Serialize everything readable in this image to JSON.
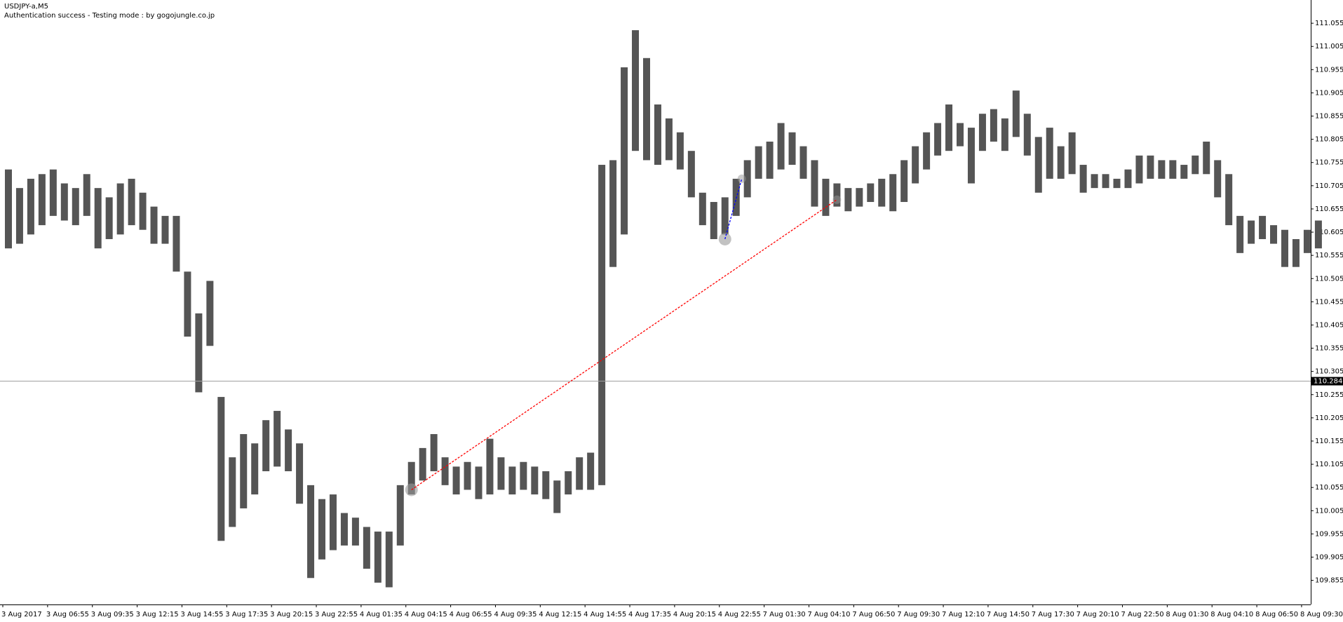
{
  "chart_data": {
    "type": "ohlc",
    "title": "USDJPY-a,M5",
    "subtitle": "Authentication success - Testing mode : by gogojungle.co.jp",
    "x_labels": [
      "3 Aug 2017",
      "3 Aug 06:55",
      "3 Aug 09:35",
      "3 Aug 12:15",
      "3 Aug 14:55",
      "3 Aug 17:35",
      "3 Aug 20:15",
      "3 Aug 22:55",
      "4 Aug 01:35",
      "4 Aug 04:15",
      "4 Aug 06:55",
      "4 Aug 09:35",
      "4 Aug 12:15",
      "4 Aug 14:55",
      "4 Aug 17:35",
      "4 Aug 20:15",
      "4 Aug 22:55",
      "7 Aug 01:30",
      "7 Aug 04:10",
      "7 Aug 06:50",
      "7 Aug 09:30",
      "7 Aug 12:10",
      "7 Aug 14:50",
      "7 Aug 17:30",
      "7 Aug 20:10",
      "7 Aug 22:50",
      "8 Aug 01:30",
      "8 Aug 04:10",
      "8 Aug 06:50",
      "8 Aug 09:30"
    ],
    "high": [
      110.74,
      110.7,
      110.72,
      110.73,
      110.74,
      110.71,
      110.7,
      110.73,
      110.7,
      110.68,
      110.71,
      110.72,
      110.69,
      110.66,
      110.64,
      110.64,
      110.52,
      110.43,
      110.5,
      110.25,
      110.12,
      110.17,
      110.15,
      110.2,
      110.22,
      110.18,
      110.15,
      110.06,
      110.03,
      110.04,
      110.0,
      109.99,
      109.97,
      109.96,
      109.96,
      110.06,
      110.11,
      110.14,
      110.17,
      110.12,
      110.1,
      110.11,
      110.1,
      110.16,
      110.12,
      110.1,
      110.11,
      110.1,
      110.09,
      110.07,
      110.09,
      110.12,
      110.13,
      110.75,
      110.76,
      110.96,
      111.04,
      110.98,
      110.88,
      110.85,
      110.82,
      110.78,
      110.69,
      110.67,
      110.68,
      110.72,
      110.76,
      110.79,
      110.8,
      110.84,
      110.82,
      110.79,
      110.76,
      110.72,
      110.71,
      110.7,
      110.7,
      110.71,
      110.72,
      110.73,
      110.76,
      110.79,
      110.82,
      110.84,
      110.88,
      110.84,
      110.83,
      110.86,
      110.87,
      110.85,
      110.91,
      110.86,
      110.81,
      110.83,
      110.79,
      110.82,
      110.75,
      110.73,
      110.73,
      110.72,
      110.74,
      110.77,
      110.77,
      110.76,
      110.76,
      110.75,
      110.77,
      110.8,
      110.76,
      110.73,
      110.64,
      110.63,
      110.64,
      110.62,
      110.61,
      110.59,
      110.61,
      110.63
    ],
    "low": [
      110.57,
      110.58,
      110.6,
      110.62,
      110.64,
      110.63,
      110.62,
      110.64,
      110.57,
      110.59,
      110.6,
      110.62,
      110.61,
      110.58,
      110.58,
      110.52,
      110.38,
      110.26,
      110.36,
      109.94,
      109.97,
      110.01,
      110.04,
      110.09,
      110.1,
      110.09,
      110.02,
      109.86,
      109.9,
      109.92,
      109.93,
      109.93,
      109.88,
      109.85,
      109.84,
      109.93,
      110.04,
      110.07,
      110.09,
      110.06,
      110.04,
      110.05,
      110.03,
      110.04,
      110.05,
      110.04,
      110.05,
      110.04,
      110.03,
      110.0,
      110.04,
      110.05,
      110.05,
      110.06,
      110.53,
      110.6,
      110.78,
      110.76,
      110.75,
      110.76,
      110.74,
      110.68,
      110.62,
      110.59,
      110.6,
      110.64,
      110.68,
      110.72,
      110.72,
      110.74,
      110.75,
      110.72,
      110.66,
      110.64,
      110.66,
      110.65,
      110.66,
      110.67,
      110.66,
      110.65,
      110.67,
      110.71,
      110.74,
      110.77,
      110.78,
      110.79,
      110.71,
      110.78,
      110.8,
      110.78,
      110.81,
      110.77,
      110.69,
      110.72,
      110.72,
      110.73,
      110.69,
      110.7,
      110.7,
      110.7,
      110.7,
      110.71,
      110.72,
      110.72,
      110.72,
      110.72,
      110.73,
      110.73,
      110.68,
      110.62,
      110.56,
      110.58,
      110.59,
      110.58,
      110.53,
      110.53,
      110.56,
      110.57
    ],
    "color": "#555555",
    "ylim": [
      109.803,
      111.099
    ],
    "yticks": [
      109.855,
      109.905,
      109.955,
      110.005,
      110.055,
      110.105,
      110.155,
      110.205,
      110.255,
      110.305,
      110.355,
      110.405,
      110.455,
      110.505,
      110.555,
      110.605,
      110.655,
      110.705,
      110.755,
      110.805,
      110.855,
      110.905,
      110.955,
      111.005,
      111.055
    ],
    "current_price": 110.284,
    "trades": [
      {
        "open": 110.05,
        "close": 110.675,
        "color": "#ff0000"
      },
      {
        "open": 110.59,
        "close": 110.72,
        "color": "#0000ff"
      }
    ]
  }
}
